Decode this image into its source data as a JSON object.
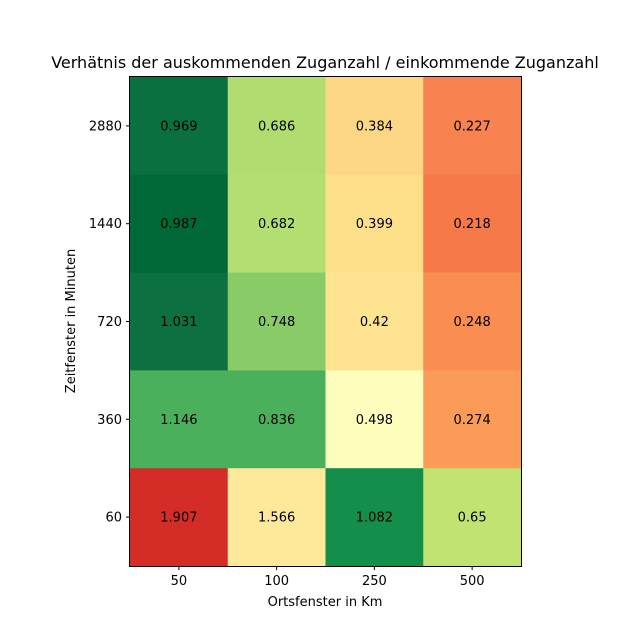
{
  "chart_data": {
    "type": "heatmap",
    "title": "Verhätnis der auskommenden Zuganzahl / einkommende Zuganzahl",
    "xlabel": "Ortsfenster in Km",
    "ylabel": "Zeitfenster in Minuten",
    "x_categories": [
      "50",
      "100",
      "250",
      "500"
    ],
    "y_categories_top_to_bottom": [
      "2880",
      "1440",
      "720",
      "360",
      "60"
    ],
    "values_top_to_bottom": [
      [
        0.969,
        0.686,
        0.384,
        0.227
      ],
      [
        0.987,
        0.682,
        0.399,
        0.218
      ],
      [
        1.031,
        0.748,
        0.42,
        0.248
      ],
      [
        1.146,
        0.836,
        0.498,
        0.274
      ],
      [
        1.907,
        1.566,
        1.082,
        0.65
      ]
    ],
    "value_labels_top_to_bottom": [
      [
        "0.969",
        "0.686",
        "0.384",
        "0.227"
      ],
      [
        "0.987",
        "0.682",
        "0.399",
        "0.218"
      ],
      [
        "1.031",
        "0.748",
        "0.42",
        "0.248"
      ],
      [
        "1.146",
        "0.836",
        "0.498",
        "0.274"
      ],
      [
        "1.907",
        "1.566",
        "1.082",
        "0.65"
      ]
    ],
    "cell_colors_top_to_bottom": [
      [
        "#0b7040",
        "#b1dd70",
        "#fdd785",
        "#f88250"
      ],
      [
        "#006837",
        "#b3de72",
        "#fee08b",
        "#f67a49"
      ],
      [
        "#0c7040",
        "#88cb67",
        "#fee491",
        "#f98d52"
      ],
      [
        "#4bb05c",
        "#4bb05c",
        "#fefebd",
        "#fa9b58"
      ],
      [
        "#d42d27",
        "#fee89a",
        "#148e4b",
        "#c0e371"
      ]
    ],
    "colormap": "RdYlGn",
    "legend": "none",
    "grid": false
  }
}
